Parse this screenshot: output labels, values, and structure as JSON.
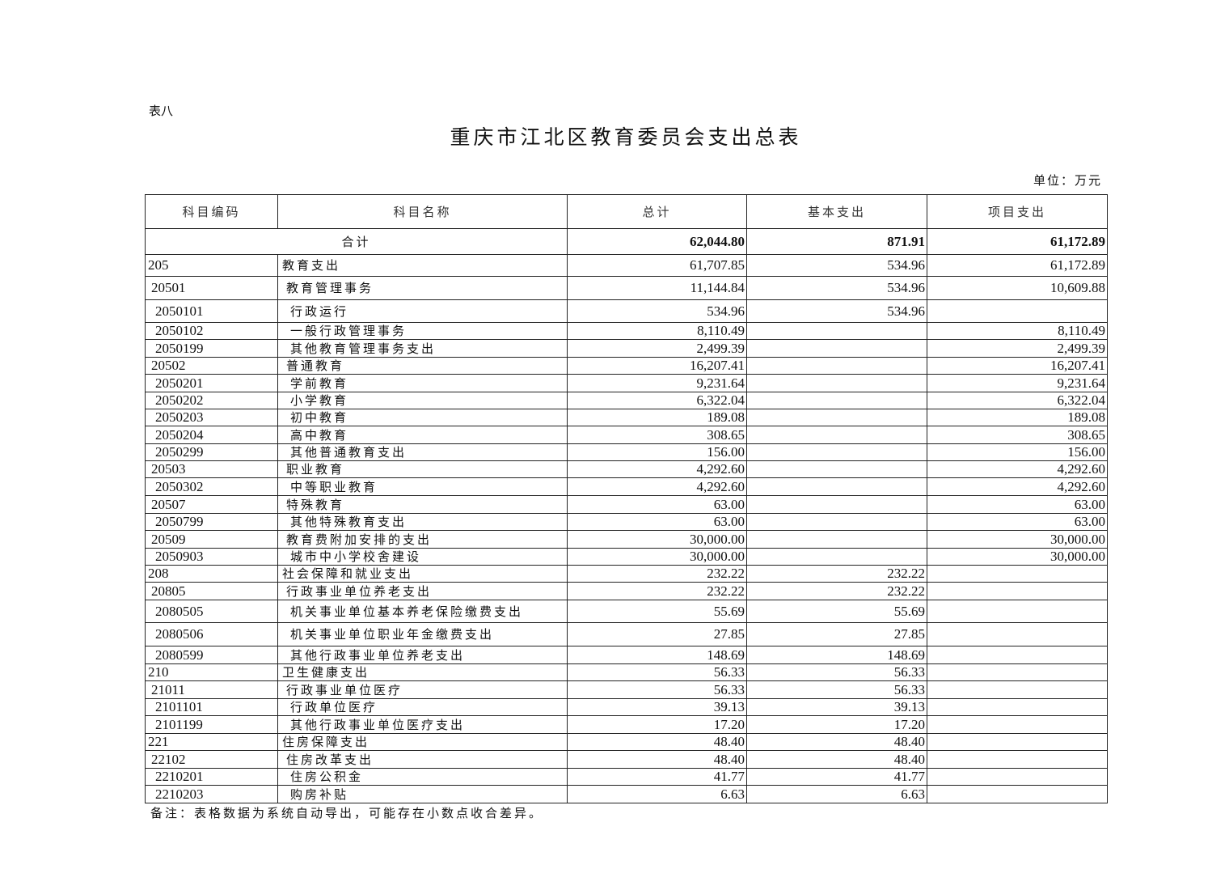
{
  "doc": {
    "label": "表八",
    "title": "重庆市江北区教育委员会支出总表",
    "unit": "单位：万元",
    "note": "备注：表格数据为系统自动导出，可能存在小数点收合差异。"
  },
  "table": {
    "headers": [
      "科目编码",
      "科目名称",
      "总计",
      "基本支出",
      "项目支出"
    ],
    "total": {
      "label": "合计",
      "total": "62,044.80",
      "basic": "871.91",
      "project": "61,172.89"
    },
    "rows": [
      {
        "code": "205",
        "name": "教育支出",
        "total": "61,707.85",
        "basic": "534.96",
        "project": "61,172.89",
        "level": 1
      },
      {
        "code": "20501",
        "name": "教育管理事务",
        "total": "11,144.84",
        "basic": "534.96",
        "project": "10,609.88",
        "level": 2
      },
      {
        "code": "2050101",
        "name": "行政运行",
        "total": "534.96",
        "basic": "534.96",
        "project": "",
        "level": 3
      },
      {
        "code": "2050102",
        "name": "一般行政管理事务",
        "total": "8,110.49",
        "basic": "",
        "project": "8,110.49",
        "level": 3
      },
      {
        "code": "2050199",
        "name": "其他教育管理事务支出",
        "total": "2,499.39",
        "basic": "",
        "project": "2,499.39",
        "level": 3
      },
      {
        "code": "20502",
        "name": "普通教育",
        "total": "16,207.41",
        "basic": "",
        "project": "16,207.41",
        "level": 2
      },
      {
        "code": "2050201",
        "name": "学前教育",
        "total": "9,231.64",
        "basic": "",
        "project": "9,231.64",
        "level": 3
      },
      {
        "code": "2050202",
        "name": "小学教育",
        "total": "6,322.04",
        "basic": "",
        "project": "6,322.04",
        "level": 3
      },
      {
        "code": "2050203",
        "name": "初中教育",
        "total": "189.08",
        "basic": "",
        "project": "189.08",
        "level": 3
      },
      {
        "code": "2050204",
        "name": "高中教育",
        "total": "308.65",
        "basic": "",
        "project": "308.65",
        "level": 3
      },
      {
        "code": "2050299",
        "name": "其他普通教育支出",
        "total": "156.00",
        "basic": "",
        "project": "156.00",
        "level": 3
      },
      {
        "code": "20503",
        "name": "职业教育",
        "total": "4,292.60",
        "basic": "",
        "project": "4,292.60",
        "level": 2
      },
      {
        "code": "2050302",
        "name": "中等职业教育",
        "total": "4,292.60",
        "basic": "",
        "project": "4,292.60",
        "level": 3
      },
      {
        "code": "20507",
        "name": "特殊教育",
        "total": "63.00",
        "basic": "",
        "project": "63.00",
        "level": 2
      },
      {
        "code": "2050799",
        "name": "其他特殊教育支出",
        "total": "63.00",
        "basic": "",
        "project": "63.00",
        "level": 3
      },
      {
        "code": "20509",
        "name": "教育费附加安排的支出",
        "total": "30,000.00",
        "basic": "",
        "project": "30,000.00",
        "level": 2
      },
      {
        "code": "2050903",
        "name": "城市中小学校舍建设",
        "total": "30,000.00",
        "basic": "",
        "project": "30,000.00",
        "level": 3
      },
      {
        "code": "208",
        "name": "社会保障和就业支出",
        "total": "232.22",
        "basic": "232.22",
        "project": "",
        "level": 1
      },
      {
        "code": "20805",
        "name": "行政事业单位养老支出",
        "total": "232.22",
        "basic": "232.22",
        "project": "",
        "level": 2
      },
      {
        "code": "2080505",
        "name": "机关事业单位基本养老保险缴费支出",
        "total": "55.69",
        "basic": "55.69",
        "project": "",
        "level": 3
      },
      {
        "code": "2080506",
        "name": "机关事业单位职业年金缴费支出",
        "total": "27.85",
        "basic": "27.85",
        "project": "",
        "level": 3
      },
      {
        "code": "2080599",
        "name": "其他行政事业单位养老支出",
        "total": "148.69",
        "basic": "148.69",
        "project": "",
        "level": 3
      },
      {
        "code": "210",
        "name": "卫生健康支出",
        "total": "56.33",
        "basic": "56.33",
        "project": "",
        "level": 1
      },
      {
        "code": "21011",
        "name": "行政事业单位医疗",
        "total": "56.33",
        "basic": "56.33",
        "project": "",
        "level": 2
      },
      {
        "code": "2101101",
        "name": "行政单位医疗",
        "total": "39.13",
        "basic": "39.13",
        "project": "",
        "level": 3
      },
      {
        "code": "2101199",
        "name": "其他行政事业单位医疗支出",
        "total": "17.20",
        "basic": "17.20",
        "project": "",
        "level": 3
      },
      {
        "code": "221",
        "name": "住房保障支出",
        "total": "48.40",
        "basic": "48.40",
        "project": "",
        "level": 1
      },
      {
        "code": "22102",
        "name": "住房改革支出",
        "total": "48.40",
        "basic": "48.40",
        "project": "",
        "level": 2
      },
      {
        "code": "2210201",
        "name": "住房公积金",
        "total": "41.77",
        "basic": "41.77",
        "project": "",
        "level": 3
      },
      {
        "code": "2210203",
        "name": "购房补贴",
        "total": "6.63",
        "basic": "6.63",
        "project": "",
        "level": 3
      }
    ]
  }
}
